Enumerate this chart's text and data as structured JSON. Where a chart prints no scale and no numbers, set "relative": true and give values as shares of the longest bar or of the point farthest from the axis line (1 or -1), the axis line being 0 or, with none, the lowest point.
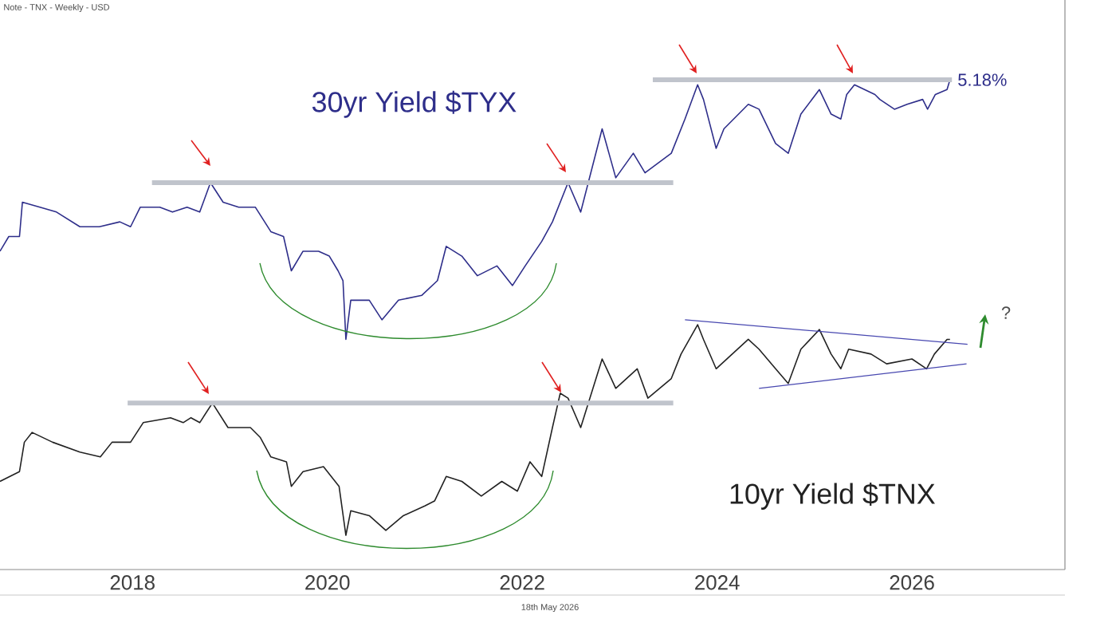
{
  "chart_data": {
    "type": "line",
    "relative": true,
    "legend": false,
    "grid": false,
    "marker": "none",
    "line_style": "solid",
    "xlim": [
      2016.64,
      2027.57
    ],
    "xticks": [
      2018,
      2020,
      2022,
      2024,
      2026
    ],
    "series": [
      {
        "name": "30yr Yield $TYX",
        "color": "#2e2e8a",
        "x": [
          2016.64,
          2016.73,
          2016.84,
          2016.87,
          2017.05,
          2017.22,
          2017.46,
          2017.66,
          2017.87,
          2017.98,
          2018.08,
          2018.28,
          2018.41,
          2018.56,
          2018.69,
          2018.8,
          2018.93,
          2019.09,
          2019.26,
          2019.42,
          2019.55,
          2019.63,
          2019.75,
          2019.91,
          2020.02,
          2020.11,
          2020.16,
          2020.19,
          2020.24,
          2020.43,
          2020.56,
          2020.73,
          2020.97,
          2021.13,
          2021.22,
          2021.38,
          2021.54,
          2021.74,
          2021.9,
          2022.03,
          2022.2,
          2022.31,
          2022.47,
          2022.6,
          2022.82,
          2022.96,
          2023.14,
          2023.26,
          2023.53,
          2023.67,
          2023.8,
          2023.86,
          2023.99,
          2024.07,
          2024.32,
          2024.43,
          2024.6,
          2024.73,
          2024.86,
          2025.05,
          2025.17,
          2025.27,
          2025.33,
          2025.41,
          2025.62,
          2025.67,
          2025.82,
          2025.95,
          2026.11,
          2026.16,
          2026.24,
          2026.36,
          2026.39
        ],
        "values": [
          0.65,
          0.68,
          0.68,
          0.75,
          0.74,
          0.73,
          0.7,
          0.7,
          0.71,
          0.7,
          0.74,
          0.74,
          0.73,
          0.74,
          0.73,
          0.79,
          0.75,
          0.74,
          0.74,
          0.69,
          0.68,
          0.61,
          0.65,
          0.65,
          0.64,
          0.61,
          0.59,
          0.47,
          0.55,
          0.55,
          0.51,
          0.55,
          0.56,
          0.59,
          0.66,
          0.64,
          0.6,
          0.62,
          0.58,
          0.62,
          0.67,
          0.71,
          0.79,
          0.73,
          0.9,
          0.8,
          0.85,
          0.81,
          0.85,
          0.92,
          0.99,
          0.96,
          0.86,
          0.9,
          0.95,
          0.94,
          0.87,
          0.85,
          0.93,
          0.98,
          0.93,
          0.92,
          0.97,
          0.99,
          0.97,
          0.96,
          0.94,
          0.95,
          0.96,
          0.94,
          0.97,
          0.98,
          1.0
        ]
      },
      {
        "name": "10yr Yield $TNX",
        "color": "#222222",
        "x": [
          2016.64,
          2016.84,
          2016.89,
          2016.97,
          2017.18,
          2017.46,
          2017.67,
          2017.79,
          2017.98,
          2018.11,
          2018.39,
          2018.52,
          2018.6,
          2018.69,
          2018.82,
          2018.98,
          2019.21,
          2019.31,
          2019.42,
          2019.58,
          2019.63,
          2019.75,
          2019.96,
          2020.12,
          2020.19,
          2020.24,
          2020.43,
          2020.6,
          2020.78,
          2021.0,
          2021.1,
          2021.22,
          2021.38,
          2021.58,
          2021.79,
          2021.95,
          2022.08,
          2022.2,
          2022.31,
          2022.39,
          2022.47,
          2022.6,
          2022.82,
          2022.96,
          2023.18,
          2023.29,
          2023.53,
          2023.63,
          2023.8,
          2023.86,
          2023.99,
          2024.32,
          2024.43,
          2024.6,
          2024.73,
          2024.86,
          2025.05,
          2025.17,
          2025.27,
          2025.35,
          2025.58,
          2025.74,
          2026.0,
          2026.15,
          2026.23,
          2026.36,
          2026.39
        ],
        "values": [
          0.18,
          0.2,
          0.26,
          0.28,
          0.26,
          0.24,
          0.23,
          0.26,
          0.26,
          0.3,
          0.31,
          0.3,
          0.31,
          0.3,
          0.34,
          0.29,
          0.29,
          0.27,
          0.23,
          0.22,
          0.17,
          0.2,
          0.21,
          0.17,
          0.07,
          0.12,
          0.11,
          0.08,
          0.11,
          0.13,
          0.14,
          0.19,
          0.18,
          0.15,
          0.18,
          0.16,
          0.22,
          0.19,
          0.29,
          0.36,
          0.35,
          0.29,
          0.43,
          0.37,
          0.41,
          0.35,
          0.39,
          0.44,
          0.5,
          0.47,
          0.41,
          0.47,
          0.45,
          0.41,
          0.38,
          0.45,
          0.49,
          0.44,
          0.41,
          0.45,
          0.44,
          0.42,
          0.43,
          0.41,
          0.44,
          0.47,
          0.47
        ]
      },
      {
        "color": "#c0c4cc",
        "x": [
          2018.2,
          2023.55
        ],
        "values": [
          0.79,
          0.79
        ]
      },
      {
        "color": "#c0c4cc",
        "x": [
          2023.34,
          2026.41
        ],
        "values": [
          1.0,
          1.0
        ]
      },
      {
        "color": "#c0c4cc",
        "x": [
          2017.95,
          2023.55
        ],
        "values": [
          0.34,
          0.34
        ]
      },
      {
        "color": "#4848b0",
        "x": [
          2023.67,
          2026.57
        ],
        "values": [
          0.51,
          0.46
        ]
      },
      {
        "color": "#4848b0",
        "x": [
          2024.43,
          2026.56
        ],
        "values": [
          0.37,
          0.42
        ]
      }
    ],
    "annotations": [
      "Note - TNX - Weekly - USD",
      {
        "text": "5.18%",
        "x": 2026.41,
        "y": 1.0
      },
      "?",
      "18th May 2026"
    ]
  }
}
